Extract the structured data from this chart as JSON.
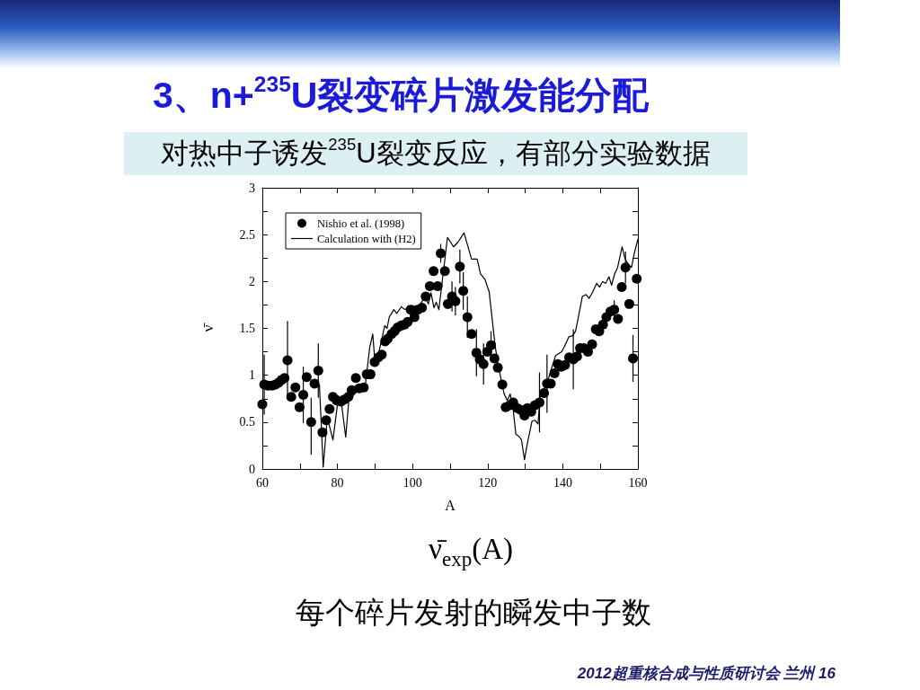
{
  "chart_data": {
    "type": "scatter",
    "title": "3、n+$^{235}$U裂变碎片激发能分配",
    "subtitle": "对热中子诱发$^{235}$U裂变反应，有部分实验数据",
    "xlabel": "A",
    "ylabel": "ν̄",
    "annotations": [
      "ν̄$_{exp}$(A)",
      "每个碎片发射的瞬发中子数",
      "2012超重核合成与性质研讨会 兰州 16"
    ],
    "xlim": [
      60,
      160
    ],
    "ylim": [
      0,
      3
    ],
    "xticks": [
      60,
      {
        "value": 70,
        "label": null
      },
      80,
      {
        "value": 90,
        "label": null
      },
      100,
      {
        "value": 110,
        "label": null
      },
      120,
      {
        "value": 130,
        "label": null
      },
      140,
      {
        "value": 150,
        "label": null
      },
      160
    ],
    "yticks": [
      0,
      {
        "value": 0.25,
        "label": null
      },
      0.5,
      {
        "value": 0.75,
        "label": null
      },
      1,
      {
        "value": 1.25,
        "label": null
      },
      1.5,
      {
        "value": 1.75,
        "label": null
      },
      2,
      {
        "value": 2.25,
        "label": null
      },
      2.5,
      {
        "value": 2.75,
        "label": null
      },
      3
    ],
    "legend": "top left",
    "series": [
      {
        "name": "Nishio et al. (1998)",
        "marker": "circle",
        "color": "#000000",
        "x": [
          60.0,
          60.5,
          61.5,
          62.6,
          63.5,
          64.3,
          65.1,
          65.9,
          66.7,
          67.7,
          68.8,
          69.9,
          70.9,
          71.8,
          73.0,
          73.9,
          74.9,
          76.0,
          77.0,
          77.9,
          78.8,
          79.8,
          80.9,
          81.8,
          82.9,
          83.8,
          84.9,
          85.8,
          87.0,
          87.8,
          88.8,
          89.9,
          90.9,
          91.8,
          92.7,
          93.4,
          94.4,
          95.2,
          96.0,
          97.0,
          97.9,
          98.7,
          99.5,
          100.5,
          101.4,
          102.5,
          103.5,
          104.6,
          105.6,
          106.7,
          107.5,
          108.6,
          109.4,
          110.5,
          111.4,
          112.6,
          113.5,
          114.6,
          115.7,
          117.0,
          117.9,
          118.9,
          119.9,
          120.9,
          121.8,
          122.7,
          123.9,
          124.8,
          125.9,
          126.8,
          127.9,
          128.8,
          129.8,
          130.6,
          131.6,
          132.6,
          133.8,
          135.0,
          135.8,
          136.8,
          137.8,
          138.7,
          139.6,
          140.6,
          141.7,
          142.8,
          143.8,
          144.6,
          145.6,
          146.7,
          147.8,
          148.8,
          149.7,
          150.7,
          151.6,
          152.7,
          153.7,
          154.7,
          155.7,
          156.7,
          157.7,
          158.7,
          159.7
        ],
        "values": [
          0.69,
          0.9,
          0.89,
          0.89,
          0.9,
          0.92,
          0.95,
          0.97,
          1.16,
          0.77,
          0.87,
          0.66,
          0.79,
          0.98,
          0.5,
          0.91,
          1.05,
          0.39,
          0.52,
          0.64,
          0.77,
          0.73,
          0.72,
          0.74,
          0.77,
          0.84,
          0.97,
          0.86,
          0.87,
          1.01,
          1.01,
          1.14,
          1.19,
          1.22,
          1.36,
          1.39,
          1.44,
          1.47,
          1.51,
          1.53,
          1.54,
          1.57,
          1.7,
          1.62,
          1.7,
          1.72,
          1.84,
          1.95,
          2.11,
          1.95,
          2.3,
          2.11,
          1.76,
          1.84,
          1.79,
          2.16,
          1.9,
          1.62,
          1.44,
          1.24,
          1.17,
          1.12,
          1.25,
          1.32,
          1.18,
          1.08,
          0.9,
          0.66,
          0.68,
          0.71,
          0.65,
          0.63,
          0.57,
          0.65,
          0.61,
          0.68,
          0.71,
          0.81,
          0.91,
          0.91,
          1.02,
          1.12,
          1.09,
          1.11,
          1.19,
          1.17,
          1.2,
          1.29,
          1.29,
          1.25,
          1.33,
          1.49,
          1.47,
          1.54,
          1.62,
          1.68,
          1.7,
          1.6,
          1.94,
          2.15,
          1.76,
          1.18,
          2.03
        ],
        "errors": [
          null,
          0.32,
          null,
          null,
          null,
          null,
          null,
          null,
          0.42,
          null,
          null,
          null,
          0.3,
          null,
          [
            0.15,
            0.76
          ],
          null,
          0.29,
          null,
          null,
          null,
          null,
          null,
          null,
          null,
          null,
          null,
          null,
          null,
          null,
          null,
          null,
          null,
          null,
          null,
          null,
          null,
          null,
          null,
          null,
          null,
          null,
          null,
          null,
          null,
          null,
          null,
          null,
          null,
          null,
          null,
          0.1,
          null,
          null,
          0.16,
          0.15,
          0.18,
          0.2,
          0.22,
          null,
          0.25,
          null,
          0.22,
          null,
          0.15,
          null,
          null,
          null,
          null,
          null,
          null,
          null,
          null,
          null,
          null,
          null,
          null,
          0.32,
          null,
          0.31,
          null,
          null,
          null,
          null,
          null,
          null,
          0.32,
          null,
          null,
          null,
          null,
          null,
          null,
          null,
          null,
          null,
          null,
          0.1,
          null,
          null,
          0.17,
          null,
          0.25,
          null
        ]
      },
      {
        "name": "Calculation with (H2)",
        "type": "line",
        "marker": "none",
        "line_style": "solid",
        "color": "#000000",
        "x": [
          75.2,
          76.2,
          77.3,
          78.8,
          80.3,
          81.0,
          82.2,
          83.0,
          84.5,
          86.0,
          87.5,
          88.6,
          89.4,
          89.9,
          91.0,
          92.6,
          93.2,
          93.8,
          95.0,
          95.8,
          97.0,
          98.0,
          98.9,
          100.0,
          101.0,
          102.1,
          103.3,
          104.2,
          104.9,
          105.7,
          106.3,
          107.0,
          109.3,
          110.9,
          112.1,
          113.7,
          115.7,
          117.2,
          118.1,
          119.3,
          120.4,
          121.2,
          122.0,
          122.8,
          123.6,
          124.4,
          125.2,
          126.0,
          126.8,
          127.5,
          128.3,
          129.0,
          129.8,
          130.6,
          131.8,
          132.6,
          133.4,
          134.0,
          134.8,
          135.7,
          136.9,
          138.1,
          139.7,
          140.5,
          141.6,
          142.6,
          143.4,
          144.2,
          145.2,
          146.2,
          147.0,
          148.0,
          149.0,
          149.8,
          150.6,
          151.4,
          152.3,
          153.0,
          153.8,
          154.6,
          155.8,
          156.6,
          157.5,
          158.3,
          159.1,
          160.0
        ],
        "values": [
          0.9,
          0.02,
          0.55,
          0.31,
          0.78,
          0.72,
          0.34,
          0.72,
          0.8,
          0.85,
          0.92,
          1.3,
          1.44,
          1.18,
          1.24,
          1.53,
          1.5,
          1.62,
          1.7,
          1.66,
          1.73,
          1.7,
          1.73,
          1.74,
          1.7,
          1.76,
          1.84,
          1.76,
          1.88,
          1.72,
          1.78,
          1.7,
          2.47,
          2.37,
          2.42,
          2.52,
          2.24,
          2.24,
          2.08,
          2.02,
          1.89,
          1.6,
          1.31,
          1.11,
          0.95,
          0.8,
          0.73,
          0.8,
          0.63,
          0.37,
          0.35,
          0.31,
          0.1,
          0.28,
          0.51,
          0.52,
          0.48,
          0.78,
          0.84,
          0.9,
          1.06,
          1.21,
          1.25,
          1.31,
          1.41,
          1.42,
          1.47,
          1.63,
          1.84,
          1.86,
          1.82,
          1.89,
          1.98,
          1.94,
          2.0,
          1.98,
          2.05,
          1.96,
          2.08,
          2.15,
          2.37,
          2.24,
          2.18,
          2.15,
          2.31,
          2.45
        ]
      }
    ]
  }
}
